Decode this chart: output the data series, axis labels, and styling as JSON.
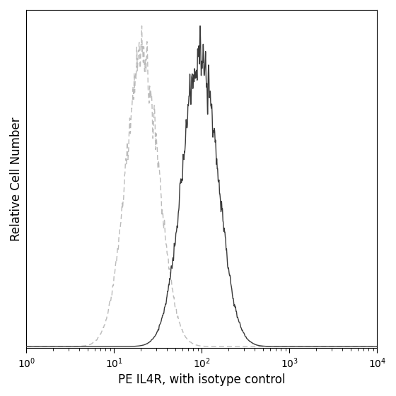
{
  "title": "",
  "xlabel": "PE IL4R, with isotype control",
  "ylabel": "Relative Cell Number",
  "xlim_log": [
    1,
    10000
  ],
  "ylim": [
    0,
    1.05
  ],
  "background_color": "#ffffff",
  "isotype_color": "#bbbbbb",
  "antibody_color": "#3a3a3a",
  "isotype_peak_log": 1.32,
  "antibody_peak_log": 1.98,
  "isotype_sigma_log": 0.19,
  "antibody_sigma_log": 0.2,
  "noise_seed_iso": 7,
  "noise_seed_ab": 13,
  "xlabel_fontsize": 12,
  "ylabel_fontsize": 12,
  "tick_fontsize": 10,
  "linewidth_iso": 1.0,
  "linewidth_ab": 1.0
}
